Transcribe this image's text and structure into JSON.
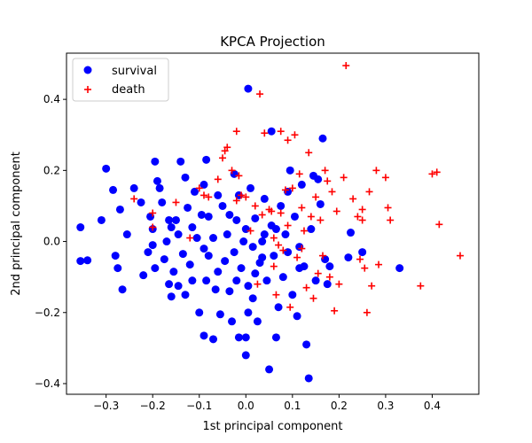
{
  "chart_data": {
    "type": "scatter",
    "title": "KPCA Projection",
    "xlabel": "1st principal component",
    "ylabel": "2nd principal component",
    "xlim": [
      -0.385,
      0.5
    ],
    "ylim": [
      -0.43,
      0.53
    ],
    "xticks": [
      -0.3,
      -0.2,
      -0.1,
      0.0,
      0.1,
      0.2,
      0.3,
      0.4
    ],
    "xtick_labels": [
      "−0.3",
      "−0.2",
      "−0.1",
      "0.0",
      "0.1",
      "0.2",
      "0.3",
      "0.4"
    ],
    "yticks": [
      -0.4,
      -0.2,
      0.0,
      0.2,
      0.4
    ],
    "ytick_labels": [
      "−0.4",
      "−0.2",
      "0.0",
      "0.2",
      "0.4"
    ],
    "grid": false,
    "legend_position": "top-left",
    "series": [
      {
        "name": "survival",
        "marker": "circle",
        "color": "#0000ff",
        "points": [
          [
            -0.355,
            0.04
          ],
          [
            -0.355,
            -0.055
          ],
          [
            -0.34,
            -0.053
          ],
          [
            -0.31,
            0.06
          ],
          [
            -0.3,
            0.205
          ],
          [
            -0.285,
            0.145
          ],
          [
            -0.27,
            0.09
          ],
          [
            -0.28,
            -0.04
          ],
          [
            -0.275,
            -0.075
          ],
          [
            -0.265,
            -0.135
          ],
          [
            -0.255,
            0.02
          ],
          [
            -0.24,
            0.15
          ],
          [
            -0.225,
            0.11
          ],
          [
            -0.22,
            -0.095
          ],
          [
            -0.21,
            -0.03
          ],
          [
            -0.205,
            0.07
          ],
          [
            -0.2,
            0.035
          ],
          [
            -0.195,
            0.225
          ],
          [
            -0.195,
            -0.075
          ],
          [
            -0.19,
            0.17
          ],
          [
            -0.185,
            0.15
          ],
          [
            -0.18,
            0.11
          ],
          [
            -0.175,
            -0.05
          ],
          [
            -0.17,
            0.0
          ],
          [
            -0.165,
            0.06
          ],
          [
            -0.165,
            -0.12
          ],
          [
            -0.16,
            -0.155
          ],
          [
            -0.155,
            -0.085
          ],
          [
            -0.15,
            0.06
          ],
          [
            -0.145,
            0.02
          ],
          [
            -0.145,
            -0.125
          ],
          [
            -0.14,
            0.225
          ],
          [
            -0.135,
            -0.035
          ],
          [
            -0.13,
            0.18
          ],
          [
            -0.13,
            -0.15
          ],
          [
            -0.125,
            0.095
          ],
          [
            -0.12,
            -0.065
          ],
          [
            -0.115,
            -0.11
          ],
          [
            -0.115,
            0.04
          ],
          [
            -0.11,
            0.14
          ],
          [
            -0.105,
            0.01
          ],
          [
            -0.1,
            -0.2
          ],
          [
            -0.095,
            0.075
          ],
          [
            -0.09,
            -0.265
          ],
          [
            -0.09,
            0.16
          ],
          [
            -0.085,
            0.23
          ],
          [
            -0.085,
            -0.11
          ],
          [
            -0.08,
            -0.04
          ],
          [
            -0.08,
            0.07
          ],
          [
            -0.07,
            -0.275
          ],
          [
            -0.07,
            0.01
          ],
          [
            -0.065,
            -0.135
          ],
          [
            -0.06,
            0.13
          ],
          [
            -0.06,
            -0.085
          ],
          [
            -0.055,
            -0.205
          ],
          [
            -0.05,
            0.1
          ],
          [
            -0.045,
            -0.055
          ],
          [
            -0.04,
            0.02
          ],
          [
            -0.035,
            0.075
          ],
          [
            -0.035,
            -0.14
          ],
          [
            -0.03,
            -0.225
          ],
          [
            -0.025,
            0.19
          ],
          [
            -0.025,
            -0.03
          ],
          [
            -0.02,
            0.06
          ],
          [
            -0.02,
            -0.11
          ],
          [
            -0.015,
            -0.27
          ],
          [
            -0.015,
            0.13
          ],
          [
            -0.01,
            -0.075
          ],
          [
            -0.005,
            0.0
          ],
          [
            0.0,
            0.035
          ],
          [
            0.0,
            -0.32
          ],
          [
            0.0,
            -0.27
          ],
          [
            0.005,
            -0.2
          ],
          [
            0.005,
            0.43
          ],
          [
            0.01,
            0.15
          ],
          [
            0.015,
            -0.16
          ],
          [
            0.015,
            -0.015
          ],
          [
            0.02,
            0.065
          ],
          [
            0.02,
            -0.09
          ],
          [
            0.025,
            -0.225
          ],
          [
            0.03,
            -0.06
          ],
          [
            0.035,
            0.0
          ],
          [
            0.04,
            0.12
          ],
          [
            0.045,
            -0.11
          ],
          [
            0.05,
            -0.36
          ],
          [
            0.055,
            0.31
          ],
          [
            0.055,
            0.045
          ],
          [
            0.06,
            -0.04
          ],
          [
            0.065,
            -0.27
          ],
          [
            0.07,
            -0.185
          ],
          [
            0.075,
            0.1
          ],
          [
            0.08,
            -0.1
          ],
          [
            0.085,
            0.02
          ],
          [
            0.09,
            -0.03
          ],
          [
            0.095,
            0.2
          ],
          [
            0.1,
            -0.15
          ],
          [
            0.105,
            0.07
          ],
          [
            0.11,
            -0.21
          ],
          [
            0.115,
            -0.075
          ],
          [
            0.12,
            0.16
          ],
          [
            0.125,
            -0.07
          ],
          [
            0.13,
            -0.29
          ],
          [
            0.135,
            -0.385
          ],
          [
            0.14,
            0.035
          ],
          [
            0.145,
            0.185
          ],
          [
            0.15,
            -0.11
          ],
          [
            0.155,
            0.175
          ],
          [
            0.16,
            0.105
          ],
          [
            0.165,
            0.29
          ],
          [
            0.17,
            -0.05
          ],
          [
            0.175,
            -0.12
          ],
          [
            0.18,
            -0.07
          ],
          [
            0.22,
            -0.045
          ],
          [
            0.225,
            0.025
          ],
          [
            0.25,
            -0.03
          ],
          [
            0.33,
            -0.075
          ],
          [
            0.005,
            -0.125
          ],
          [
            0.035,
            -0.045
          ],
          [
            0.065,
            0.035
          ],
          [
            0.115,
            -0.015
          ],
          [
            -0.09,
            -0.02
          ],
          [
            -0.2,
            -0.01
          ],
          [
            -0.16,
            0.04
          ],
          [
            0.04,
            0.02
          ],
          [
            0.09,
            0.14
          ]
        ]
      },
      {
        "name": "death",
        "marker": "plus",
        "color": "#ff0000",
        "points": [
          [
            -0.24,
            0.12
          ],
          [
            -0.2,
            0.08
          ],
          [
            -0.2,
            0.04
          ],
          [
            -0.15,
            0.11
          ],
          [
            -0.12,
            0.01
          ],
          [
            -0.1,
            0.15
          ],
          [
            -0.09,
            0.13
          ],
          [
            -0.08,
            0.125
          ],
          [
            -0.06,
            0.175
          ],
          [
            -0.05,
            0.235
          ],
          [
            -0.045,
            0.255
          ],
          [
            -0.04,
            0.265
          ],
          [
            -0.03,
            0.2
          ],
          [
            -0.02,
            0.31
          ],
          [
            -0.02,
            0.115
          ],
          [
            -0.015,
            0.185
          ],
          [
            -0.01,
            0.13
          ],
          [
            0.0,
            0.125
          ],
          [
            0.01,
            0.03
          ],
          [
            0.02,
            0.1
          ],
          [
            0.025,
            -0.12
          ],
          [
            0.03,
            0.415
          ],
          [
            0.04,
            0.305
          ],
          [
            0.05,
            0.09
          ],
          [
            0.055,
            0.085
          ],
          [
            0.06,
            0.01
          ],
          [
            0.065,
            -0.15
          ],
          [
            0.07,
            -0.01
          ],
          [
            0.075,
            0.31
          ],
          [
            0.08,
            -0.025
          ],
          [
            0.085,
            0.145
          ],
          [
            0.09,
            0.285
          ],
          [
            0.095,
            -0.185
          ],
          [
            0.1,
            0.15
          ],
          [
            0.105,
            0.3
          ],
          [
            0.11,
            -0.045
          ],
          [
            0.115,
            0.19
          ],
          [
            0.12,
            0.095
          ],
          [
            0.125,
            0.03
          ],
          [
            0.13,
            -0.13
          ],
          [
            0.135,
            0.25
          ],
          [
            0.14,
            0.07
          ],
          [
            0.145,
            -0.16
          ],
          [
            0.15,
            0.125
          ],
          [
            0.155,
            -0.09
          ],
          [
            0.16,
            0.06
          ],
          [
            0.165,
            -0.04
          ],
          [
            0.17,
            0.2
          ],
          [
            0.175,
            0.17
          ],
          [
            0.18,
            -0.1
          ],
          [
            0.185,
            0.14
          ],
          [
            0.19,
            -0.195
          ],
          [
            0.195,
            0.085
          ],
          [
            0.2,
            -0.12
          ],
          [
            0.21,
            0.18
          ],
          [
            0.215,
            0.495
          ],
          [
            0.23,
            0.12
          ],
          [
            0.24,
            0.07
          ],
          [
            0.245,
            -0.05
          ],
          [
            0.25,
            0.09
          ],
          [
            0.255,
            -0.075
          ],
          [
            0.26,
            -0.2
          ],
          [
            0.265,
            0.14
          ],
          [
            0.27,
            -0.125
          ],
          [
            0.28,
            0.2
          ],
          [
            0.285,
            -0.065
          ],
          [
            0.3,
            0.18
          ],
          [
            0.305,
            0.095
          ],
          [
            0.31,
            0.06
          ],
          [
            0.375,
            -0.125
          ],
          [
            0.4,
            0.19
          ],
          [
            0.41,
            0.195
          ],
          [
            0.415,
            0.048
          ],
          [
            0.46,
            -0.04
          ],
          [
            0.25,
            0.06
          ],
          [
            0.075,
            0.08
          ],
          [
            0.035,
            0.075
          ],
          [
            0.12,
            -0.02
          ],
          [
            0.09,
            0.045
          ],
          [
            0.06,
            -0.07
          ]
        ]
      }
    ]
  }
}
